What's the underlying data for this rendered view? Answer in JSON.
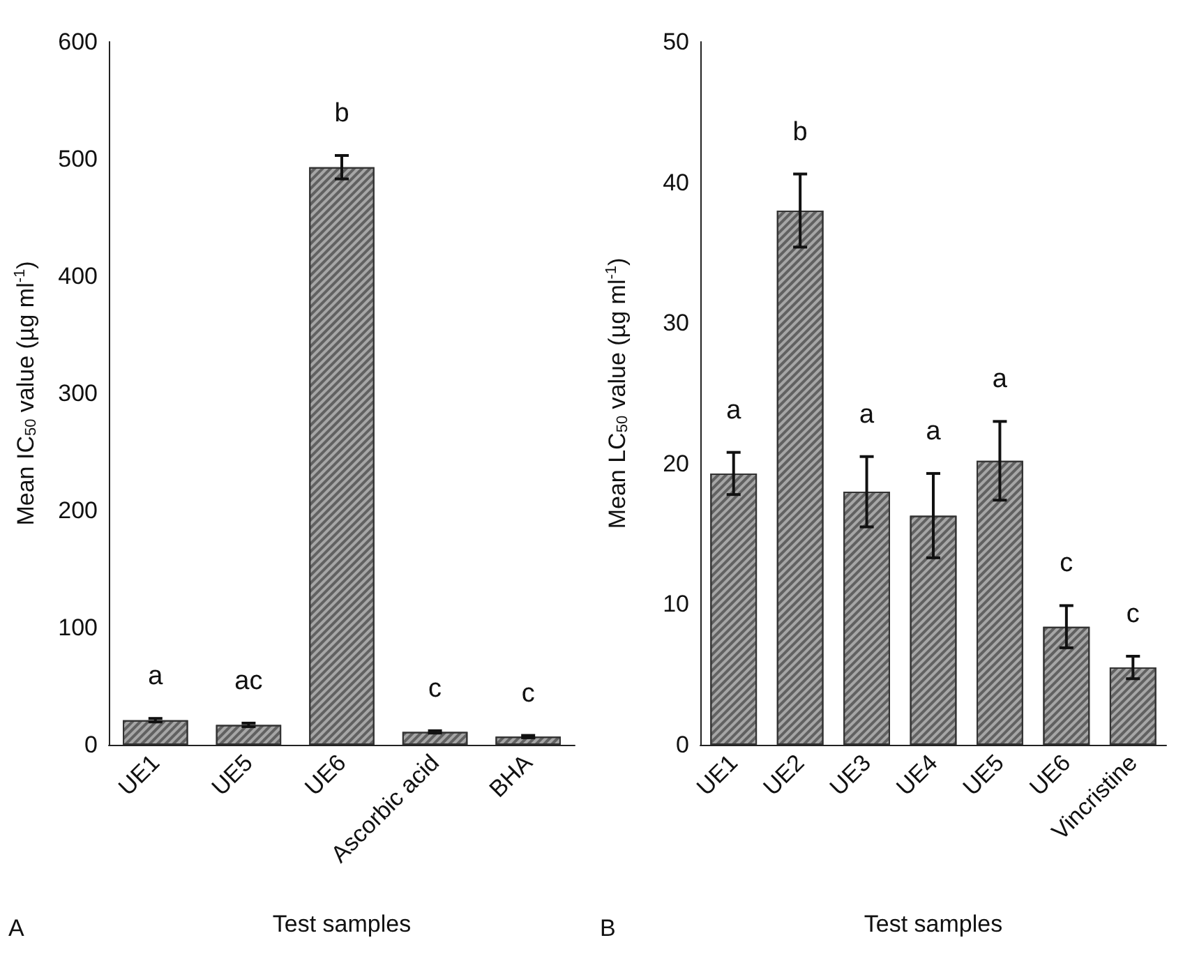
{
  "chart_data": [
    {
      "type": "bar",
      "xlabel": "Test samples",
      "ylabel": "Mean IC$_{50}$ value (µg ml$^{-1}$)",
      "categories": [
        "UE1",
        "UE5",
        "UE6",
        "Ascorbic acid",
        "BHA"
      ],
      "values": [
        21,
        17,
        493,
        11,
        7
      ],
      "errors": [
        1.5,
        1.5,
        10,
        1,
        1
      ],
      "color": "#a6a6a6",
      "ylim": [
        0,
        600
      ],
      "yticks": [
        0,
        100,
        200,
        300,
        400,
        500,
        600
      ],
      "grid": false,
      "annotations": [
        "A",
        {
          "text": "a",
          "x": "UE1",
          "y": 21
        },
        {
          "text": "ac",
          "x": "UE5",
          "y": 17
        },
        {
          "text": "b",
          "x": "UE6",
          "y": 493
        },
        {
          "text": "c",
          "x": "Ascorbic acid",
          "y": 11
        },
        {
          "text": "c",
          "x": "BHA",
          "y": 7
        }
      ]
    },
    {
      "type": "bar",
      "xlabel": "Test samples",
      "ylabel": "Mean LC$_{50}$ value (µg ml$^{-1}$)",
      "categories": [
        "UE1",
        "UE2",
        "UE3",
        "UE4",
        "UE5",
        "UE6",
        "Vincristine"
      ],
      "values": [
        19.3,
        38.0,
        18.0,
        16.3,
        20.2,
        8.4,
        5.5
      ],
      "errors": [
        1.5,
        2.6,
        2.5,
        3.0,
        2.8,
        1.5,
        0.8
      ],
      "color": "#a6a6a6",
      "ylim": [
        0,
        50
      ],
      "yticks": [
        0,
        10,
        20,
        30,
        40,
        50
      ],
      "grid": false,
      "annotations": [
        "B",
        {
          "text": "a",
          "x": "UE1",
          "y": 19.3
        },
        {
          "text": "b",
          "x": "UE2",
          "y": 38.0
        },
        {
          "text": "a",
          "x": "UE3",
          "y": 18.0
        },
        {
          "text": "a",
          "x": "UE4",
          "y": 16.3
        },
        {
          "text": "a",
          "x": "UE5",
          "y": 20.2
        },
        {
          "text": "c",
          "x": "UE6",
          "y": 8.4
        },
        {
          "text": "c",
          "x": "Vincristine",
          "y": 5.5
        }
      ]
    }
  ]
}
